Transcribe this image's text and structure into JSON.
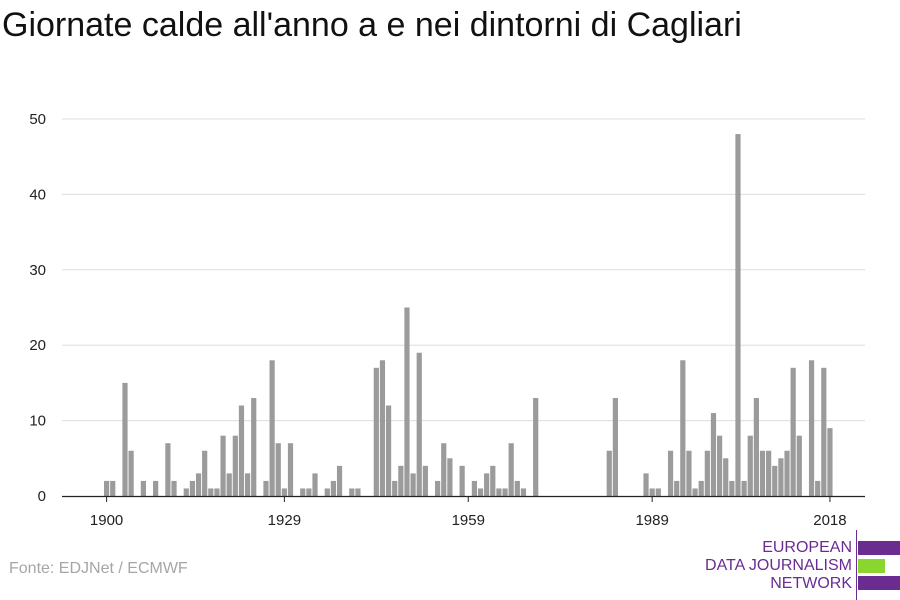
{
  "title": "Giornate calde all'anno a e nei dintorni di Cagliari",
  "source": "Fonte: EDJNet / ECMWF",
  "logo": {
    "line1": "EUROPEAN",
    "line2": "DATA JOURNALISM",
    "line3": "NETWORK"
  },
  "colors": {
    "bar": "#9b9b9b",
    "grid": "#dddddd",
    "axis": "#222222",
    "brand_purple": "#6a2c91",
    "brand_green": "#8bd62e"
  },
  "chart_data": {
    "type": "bar",
    "title": "Giornate calde all'anno a e nei dintorni di Cagliari",
    "xlabel": "",
    "ylabel": "",
    "xlim": [
      1900,
      2018
    ],
    "ylim": [
      0,
      50
    ],
    "x_ticks": [
      1900,
      1929,
      1959,
      1989,
      2018
    ],
    "y_ticks": [
      0,
      10,
      20,
      30,
      40,
      50
    ],
    "grid": true,
    "x": [
      1900,
      1901,
      1902,
      1903,
      1904,
      1905,
      1906,
      1907,
      1908,
      1909,
      1910,
      1911,
      1912,
      1913,
      1914,
      1915,
      1916,
      1917,
      1918,
      1919,
      1920,
      1921,
      1922,
      1923,
      1924,
      1925,
      1926,
      1927,
      1928,
      1929,
      1930,
      1931,
      1932,
      1933,
      1934,
      1935,
      1936,
      1937,
      1938,
      1939,
      1940,
      1941,
      1942,
      1943,
      1944,
      1945,
      1946,
      1947,
      1948,
      1949,
      1950,
      1951,
      1952,
      1953,
      1954,
      1955,
      1956,
      1957,
      1958,
      1959,
      1960,
      1961,
      1962,
      1963,
      1964,
      1965,
      1966,
      1967,
      1968,
      1969,
      1970,
      1971,
      1972,
      1973,
      1974,
      1975,
      1976,
      1977,
      1978,
      1979,
      1980,
      1981,
      1982,
      1983,
      1984,
      1985,
      1986,
      1987,
      1988,
      1989,
      1990,
      1991,
      1992,
      1993,
      1994,
      1995,
      1996,
      1997,
      1998,
      1999,
      2000,
      2001,
      2002,
      2003,
      2004,
      2005,
      2006,
      2007,
      2008,
      2009,
      2010,
      2011,
      2012,
      2013,
      2014,
      2015,
      2016,
      2017,
      2018
    ],
    "values": [
      2,
      2,
      0,
      15,
      6,
      0,
      2,
      0,
      2,
      0,
      7,
      2,
      0,
      1,
      2,
      3,
      6,
      1,
      1,
      8,
      3,
      8,
      12,
      3,
      13,
      0,
      2,
      18,
      7,
      1,
      7,
      0,
      1,
      1,
      3,
      0,
      1,
      2,
      4,
      0,
      1,
      1,
      0,
      0,
      17,
      18,
      12,
      2,
      4,
      25,
      3,
      19,
      4,
      0,
      2,
      7,
      5,
      0,
      4,
      0,
      2,
      1,
      3,
      4,
      1,
      1,
      7,
      2,
      1,
      0,
      13,
      0,
      0,
      0,
      0,
      0,
      0,
      0,
      0,
      0,
      0,
      0,
      6,
      13,
      0,
      0,
      0,
      0,
      3,
      1,
      1,
      0,
      6,
      2,
      18,
      6,
      1,
      2,
      6,
      11,
      8,
      5,
      2,
      48,
      2,
      8,
      13,
      6,
      6,
      4,
      5,
      6,
      17,
      8,
      0,
      18,
      2,
      17,
      9
    ]
  }
}
